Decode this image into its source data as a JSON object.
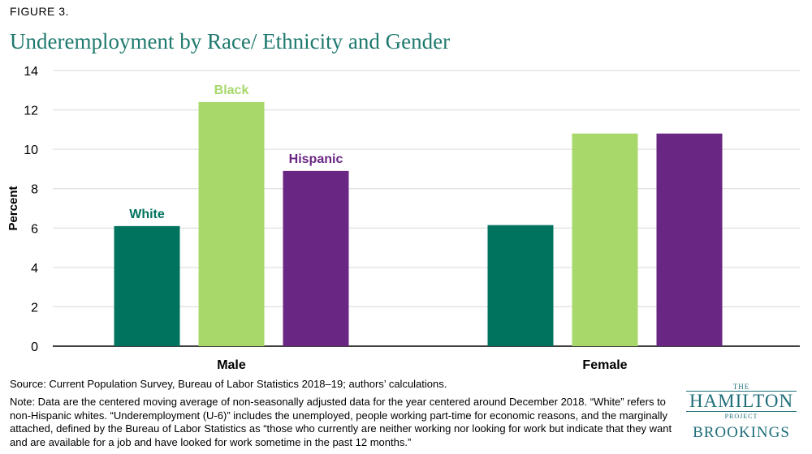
{
  "figure_label": "FIGURE 3.",
  "chart_data": {
    "type": "bar",
    "title": "Underemployment by Race/ Ethnicity and Gender",
    "xlabel": "",
    "ylabel": "Percent",
    "ylim": [
      0,
      14
    ],
    "yticks": [
      0,
      2,
      4,
      6,
      8,
      10,
      12,
      14
    ],
    "categories": [
      "Male",
      "Female"
    ],
    "series": [
      {
        "name": "White",
        "color": "#00735f",
        "values": [
          6.1,
          6.15
        ]
      },
      {
        "name": "Black",
        "color": "#a8d86a",
        "values": [
          12.4,
          10.8
        ]
      },
      {
        "name": "Hispanic",
        "color": "#6a2683",
        "values": [
          8.9,
          10.8
        ]
      }
    ],
    "series_labels_shown_on": "Male"
  },
  "source": "Source: Current Population Survey, Bureau of Labor Statistics 2018–19; authors’ calculations.",
  "note": "Note: Data are the centered moving average of non-seasonally adjusted data for the year centered around December 2018. “White” refers to non-Hispanic whites. “Underemployment (U-6)” includes the unemployed, people working part-time for economic reasons, and the marginally attached, defined by the Bureau of Labor Statistics as “those who currently are neither working nor looking for work but indicate that they want and are available for a job and have looked for work sometime in the past 12 months.”",
  "logo": {
    "the": "THE",
    "hamilton": "HAMILTON",
    "project": "PROJECT",
    "brookings": "BROOKINGS"
  }
}
